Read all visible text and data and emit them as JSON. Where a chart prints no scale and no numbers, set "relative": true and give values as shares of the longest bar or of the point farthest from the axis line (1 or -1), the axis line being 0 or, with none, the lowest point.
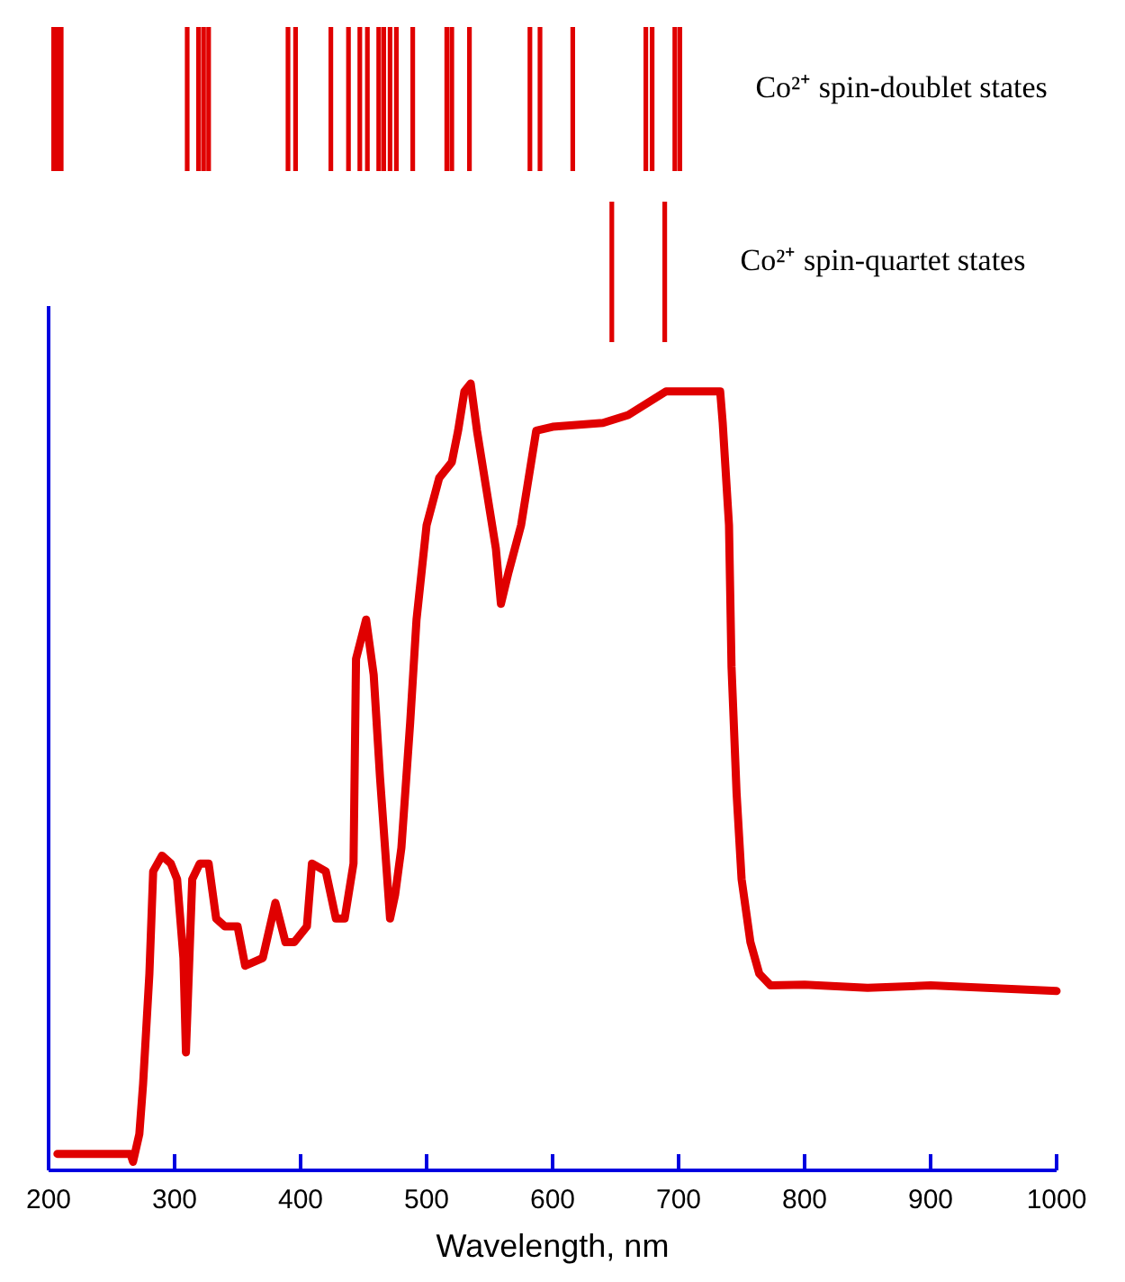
{
  "chart_data": [
    {
      "type": "bar",
      "relative": true,
      "xlim": [
        200,
        1000
      ],
      "tick_labels": false,
      "x": [
        204,
        207,
        210,
        310,
        319,
        323,
        327,
        390,
        396,
        424,
        438,
        447,
        453,
        462,
        466,
        471,
        476,
        489,
        516,
        520,
        534,
        582,
        590,
        616,
        674,
        679,
        697,
        701
      ],
      "series": [
        {
          "name": "Co²⁺ spin-doublet states",
          "color": "#e00000",
          "values": [
            1,
            1,
            1,
            1,
            1,
            1,
            1,
            1,
            1,
            1,
            1,
            1,
            1,
            1,
            1,
            1,
            1,
            1,
            1,
            1,
            1,
            1,
            1,
            1,
            1,
            1,
            1,
            1
          ]
        }
      ]
    },
    {
      "type": "bar",
      "relative": true,
      "xlim": [
        200,
        1000
      ],
      "tick_labels": false,
      "x": [
        647,
        689
      ],
      "series": [
        {
          "name": "Co²⁺ spin-quartet states",
          "color": "#e00000",
          "values": [
            1,
            1
          ]
        }
      ]
    },
    {
      "type": "line",
      "relative": true,
      "xlabel": "Wavelength, nm",
      "xlim": [
        200,
        1000
      ],
      "xticks": [
        200,
        300,
        400,
        500,
        600,
        700,
        800,
        900,
        1000
      ],
      "color": "#e00000",
      "x": [
        207,
        265,
        267,
        272,
        275,
        280,
        283,
        290,
        297,
        302,
        307,
        309,
        314,
        320,
        327,
        333,
        340,
        350,
        356,
        370,
        380,
        388,
        395,
        405,
        409,
        420,
        428,
        435,
        442,
        444,
        452,
        458,
        463,
        471,
        475,
        480,
        487,
        492,
        500,
        510,
        520,
        525,
        530,
        535,
        540,
        547,
        555,
        559,
        565,
        575,
        580,
        587,
        600,
        640,
        660,
        680,
        690,
        733,
        735,
        740,
        742,
        746,
        750,
        757,
        764,
        773,
        800,
        850,
        900,
        1000
      ],
      "values": [
        0.021,
        0.021,
        0.011,
        0.046,
        0.11,
        0.25,
        0.38,
        0.4,
        0.39,
        0.37,
        0.27,
        0.15,
        0.37,
        0.39,
        0.39,
        0.32,
        0.31,
        0.31,
        0.26,
        0.27,
        0.34,
        0.29,
        0.29,
        0.31,
        0.39,
        0.38,
        0.32,
        0.32,
        0.39,
        0.65,
        0.7,
        0.63,
        0.5,
        0.32,
        0.35,
        0.41,
        0.57,
        0.7,
        0.82,
        0.88,
        0.9,
        0.94,
        0.99,
        1,
        0.94,
        0.87,
        0.79,
        0.72,
        0.76,
        0.82,
        0.87,
        0.94,
        0.945,
        0.95,
        0.96,
        0.98,
        0.99,
        0.99,
        0.95,
        0.82,
        0.64,
        0.48,
        0.37,
        0.29,
        0.25,
        0.235,
        0.236,
        0.232,
        0.235,
        0.228
      ]
    }
  ]
}
